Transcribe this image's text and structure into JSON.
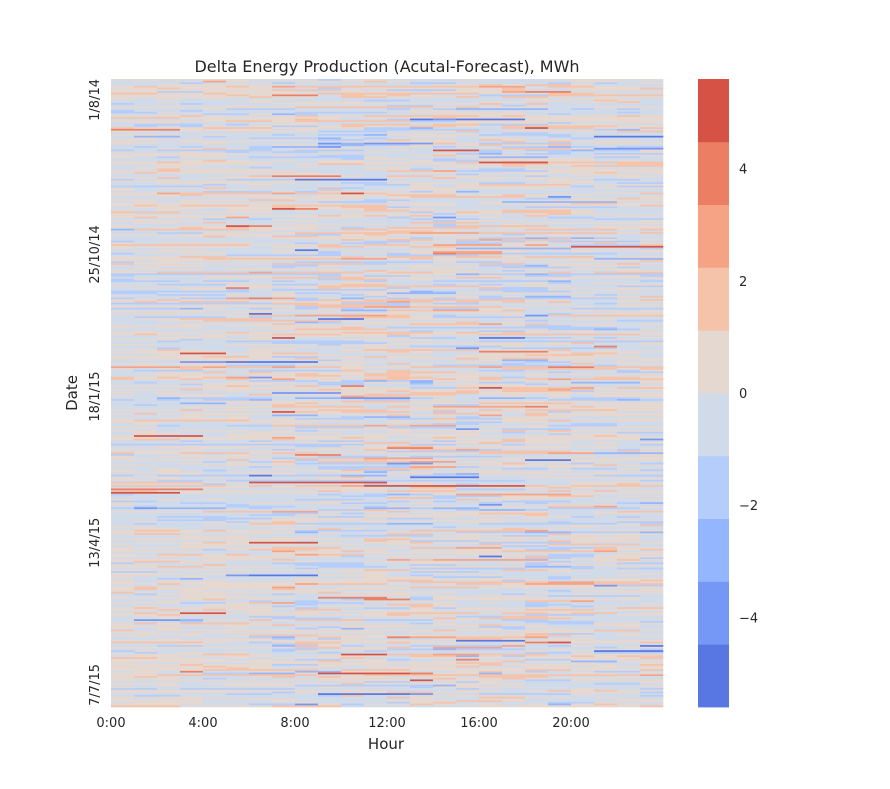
{
  "chart_data": {
    "type": "heatmap",
    "title": "Delta Energy Production (Acutal-Forecast), MWh",
    "xlabel": "Hour",
    "ylabel": "Date",
    "x_tick_labels": [
      "0:00",
      "4:00",
      "8:00",
      "12:00",
      "16:00",
      "20:00"
    ],
    "x_tick_hours": [
      0,
      4,
      8,
      12,
      16,
      20
    ],
    "x_hours_range": [
      0,
      24
    ],
    "y_tick_labels": [
      "1/8/14",
      "25/10/14",
      "18/1/15",
      "13/4/15",
      "7/7/15"
    ],
    "y_tick_day_index": [
      0,
      85,
      170,
      255,
      340
    ],
    "y_days_count": 365,
    "grid": false,
    "colorbar": {
      "ticks": [
        -4,
        -2,
        0,
        2,
        4
      ],
      "tick_labels": [
        "−4",
        "−2",
        "0",
        "2",
        "4"
      ],
      "range": [
        -5.6,
        5.6
      ],
      "levels": [
        {
          "min": -5.6,
          "max": -4.48,
          "color": "#5977e3"
        },
        {
          "min": -4.48,
          "max": -3.36,
          "color": "#7597f6"
        },
        {
          "min": -3.36,
          "max": -2.24,
          "color": "#94b6ff"
        },
        {
          "min": -2.24,
          "max": -1.12,
          "color": "#b5cdfa"
        },
        {
          "min": -1.12,
          "max": 0.0,
          "color": "#d0dae8"
        },
        {
          "min": 0.0,
          "max": 1.12,
          "color": "#e5d8d1"
        },
        {
          "min": 1.12,
          "max": 2.24,
          "color": "#f5c2aa"
        },
        {
          "min": 2.24,
          "max": 3.36,
          "color": "#f6a385"
        },
        {
          "min": 3.36,
          "max": 4.48,
          "color": "#ec7f63"
        },
        {
          "min": 4.48,
          "max": 5.6,
          "color": "#d65244"
        }
      ]
    }
  }
}
